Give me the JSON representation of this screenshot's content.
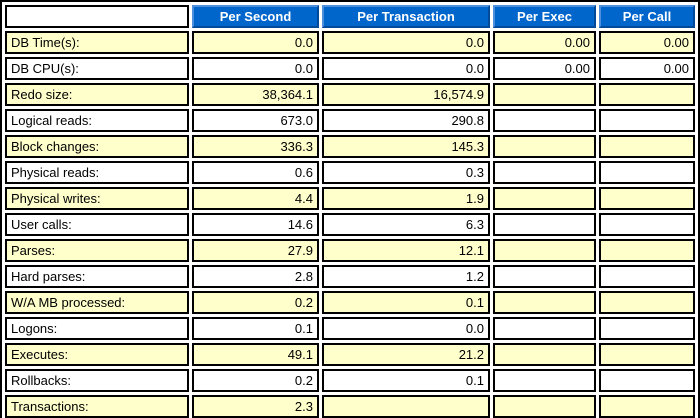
{
  "table": {
    "name": "load-profile",
    "columns": [
      "",
      "Per Second",
      "Per Transaction",
      "Per Exec",
      "Per Call"
    ],
    "rows": [
      {
        "label": "DB Time(s):",
        "values": [
          "0.0",
          "0.0",
          "0.00",
          "0.00"
        ]
      },
      {
        "label": "DB CPU(s):",
        "values": [
          "0.0",
          "0.0",
          "0.00",
          "0.00"
        ]
      },
      {
        "label": "Redo size:",
        "values": [
          "38,364.1",
          "16,574.9",
          "",
          ""
        ]
      },
      {
        "label": "Logical reads:",
        "values": [
          "673.0",
          "290.8",
          "",
          ""
        ]
      },
      {
        "label": "Block changes:",
        "values": [
          "336.3",
          "145.3",
          "",
          ""
        ]
      },
      {
        "label": "Physical reads:",
        "values": [
          "0.6",
          "0.3",
          "",
          ""
        ]
      },
      {
        "label": "Physical writes:",
        "values": [
          "4.4",
          "1.9",
          "",
          ""
        ]
      },
      {
        "label": "User calls:",
        "values": [
          "14.6",
          "6.3",
          "",
          ""
        ]
      },
      {
        "label": "Parses:",
        "values": [
          "27.9",
          "12.1",
          "",
          ""
        ]
      },
      {
        "label": "Hard parses:",
        "values": [
          "2.8",
          "1.2",
          "",
          ""
        ]
      },
      {
        "label": "W/A MB processed:",
        "values": [
          "0.2",
          "0.1",
          "",
          ""
        ]
      },
      {
        "label": "Logons:",
        "values": [
          "0.1",
          "0.0",
          "",
          ""
        ]
      },
      {
        "label": "Executes:",
        "values": [
          "49.1",
          "21.2",
          "",
          ""
        ]
      },
      {
        "label": "Rollbacks:",
        "values": [
          "0.2",
          "0.1",
          "",
          ""
        ]
      },
      {
        "label": "Transactions:",
        "values": [
          "2.3",
          "",
          "",
          ""
        ]
      }
    ],
    "colors": {
      "header_bg": "#0066CC",
      "header_text": "#FFFFFF",
      "row_bg": "#FFFFFF",
      "row_alt_bg": "#FFFFCC",
      "border": "#000000"
    }
  }
}
